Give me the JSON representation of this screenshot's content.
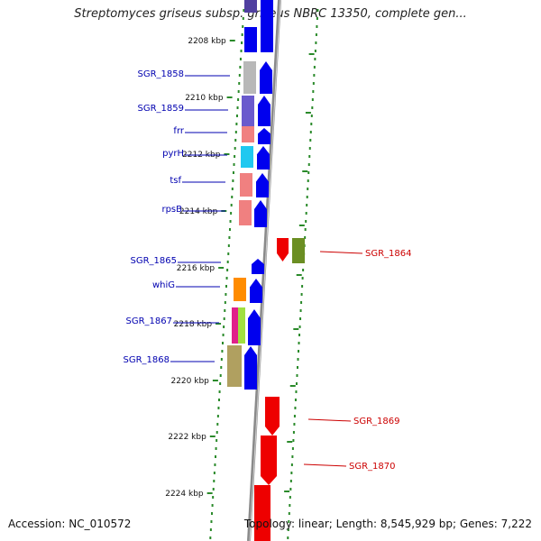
{
  "title": "Streptomyces griseus subsp. griseus NBRC 13350, complete gen...",
  "footer": {
    "accession": "Accession: NC_010572",
    "summary": "Topology: linear; Length: 8,545,929 bp; Genes: 7,222"
  },
  "colors": {
    "axis": "#8a8a8a",
    "tick": "#2a8a2a",
    "left_label": "#0000b0",
    "right_label": "#cc0000",
    "forward_gene": "#0000ee",
    "reverse_gene": "#ee0000"
  },
  "ruler": [
    "2208 kbp",
    "2210 kbp",
    "2212 kbp",
    "2214 kbp",
    "2216 kbp",
    "2218 kbp",
    "2220 kbp",
    "2222 kbp",
    "2224 kbp"
  ],
  "left_labels": [
    "SGR_1858",
    "SGR_1859",
    "frr",
    "pyrH",
    "tsf",
    "rpsB",
    "SGR_1865",
    "whiG",
    "SGR_1867",
    "SGR_1868"
  ],
  "right_labels": [
    "SGR_1864",
    "SGR_1869",
    "SGR_1870"
  ],
  "cog_colors": [
    "#b8b8b8",
    "#6a5acd",
    "#f08080",
    "#20c8f0",
    "#f08080",
    "#f08080",
    "#ff8c00",
    "#e0208a",
    "#a0e040",
    "#b0a060",
    "#6b8e23"
  ]
}
